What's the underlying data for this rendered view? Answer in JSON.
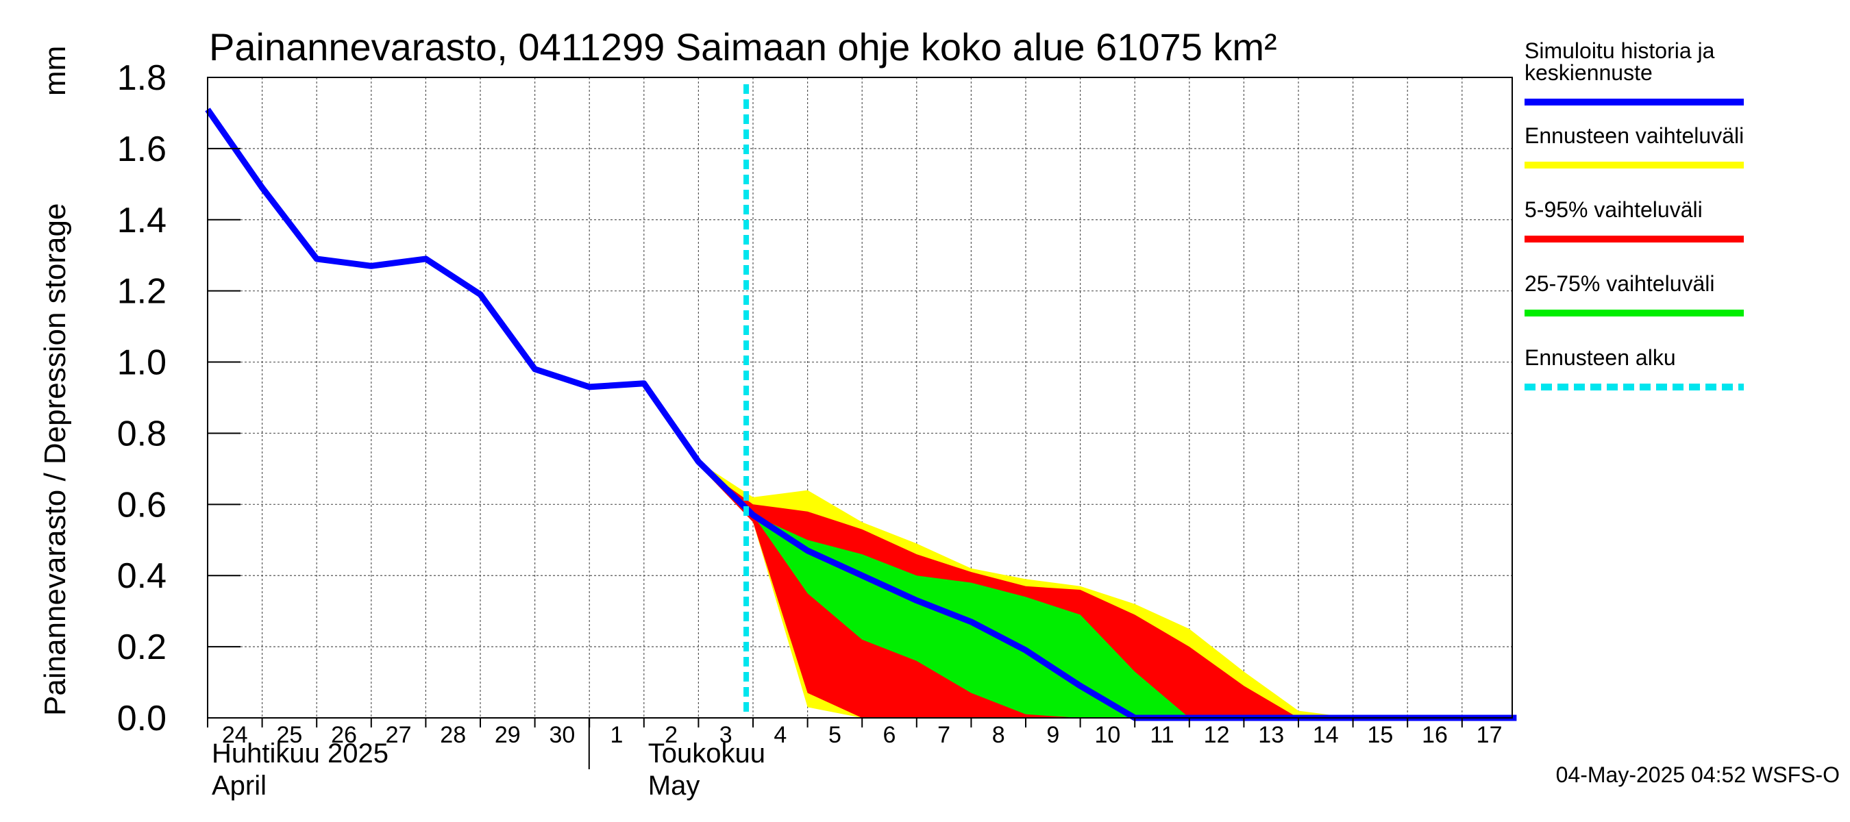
{
  "chart_data": {
    "type": "area",
    "title": "Painannevarasto, 0411299 Saimaan ohje koko alue 61075 km²",
    "ylabel": "Painannevarasto / Depression storage",
    "yunit": "mm",
    "ylim": [
      0,
      1.8
    ],
    "yticks": [
      "0.0",
      "0.2",
      "0.4",
      "0.6",
      "0.8",
      "1.0",
      "1.2",
      "1.4",
      "1.6",
      "1.8"
    ],
    "xticks": [
      "24",
      "25",
      "26",
      "27",
      "28",
      "29",
      "30",
      "1",
      "2",
      "3",
      "4",
      "5",
      "6",
      "7",
      "8",
      "9",
      "10",
      "11",
      "12",
      "13",
      "14",
      "15",
      "16",
      "17"
    ],
    "x_start": "2025-04-24",
    "month_labels": [
      {
        "line1": "Huhtikuu  2025",
        "line2": "April",
        "at": "2025-04-24"
      },
      {
        "line1": "Toukokuu",
        "line2": "May",
        "at": "2025-05-02"
      }
    ],
    "forecast_start": "2025-05-03T21:00",
    "grid": true,
    "series": [
      {
        "name": "Simuloitu historia ja keskiennuste",
        "color": "#0000ff",
        "x": [
          "2025-04-24",
          "2025-04-25",
          "2025-04-26",
          "2025-04-27",
          "2025-04-28",
          "2025-04-29",
          "2025-04-30",
          "2025-05-01",
          "2025-05-02",
          "2025-05-03",
          "2025-05-04",
          "2025-05-05",
          "2025-05-06",
          "2025-05-07",
          "2025-05-08",
          "2025-05-09",
          "2025-05-10",
          "2025-05-11",
          "2025-05-12",
          "2025-05-13",
          "2025-05-14",
          "2025-05-15",
          "2025-05-16",
          "2025-05-17",
          "2025-05-18"
        ],
        "values": [
          1.71,
          1.49,
          1.29,
          1.27,
          1.29,
          1.19,
          0.98,
          0.93,
          0.94,
          0.72,
          0.57,
          0.47,
          0.4,
          0.33,
          0.27,
          0.19,
          0.09,
          0.0,
          0.0,
          0.0,
          0.0,
          0.0,
          0.0,
          0.0,
          0.0
        ]
      }
    ],
    "bands": [
      {
        "name": "Ennusteen vaihteluväli",
        "color": "#ffff00",
        "x": [
          "2025-05-03",
          "2025-05-04",
          "2025-05-05",
          "2025-05-06",
          "2025-05-07",
          "2025-05-08",
          "2025-05-09",
          "2025-05-10",
          "2025-05-11",
          "2025-05-12",
          "2025-05-13",
          "2025-05-14",
          "2025-05-15",
          "2025-05-16",
          "2025-05-17",
          "2025-05-18"
        ],
        "upper": [
          0.72,
          0.62,
          0.64,
          0.55,
          0.49,
          0.42,
          0.39,
          0.37,
          0.32,
          0.25,
          0.13,
          0.02,
          0.0,
          0.0,
          0.0,
          0.0
        ],
        "lower": [
          0.72,
          0.55,
          0.03,
          0.0,
          0.0,
          0.0,
          0.0,
          0.0,
          0.0,
          0.0,
          0.0,
          0.0,
          0.0,
          0.0,
          0.0,
          0.0
        ]
      },
      {
        "name": "5-95% vaihteluväli",
        "color": "#ff0000",
        "x": [
          "2025-05-03",
          "2025-05-04",
          "2025-05-05",
          "2025-05-06",
          "2025-05-07",
          "2025-05-08",
          "2025-05-09",
          "2025-05-10",
          "2025-05-11",
          "2025-05-12",
          "2025-05-13",
          "2025-05-14",
          "2025-05-15",
          "2025-05-16",
          "2025-05-17",
          "2025-05-18"
        ],
        "upper": [
          0.71,
          0.6,
          0.58,
          0.53,
          0.46,
          0.41,
          0.37,
          0.36,
          0.29,
          0.2,
          0.09,
          0.0,
          0.0,
          0.0,
          0.0,
          0.0
        ],
        "lower": [
          0.71,
          0.55,
          0.07,
          0.0,
          0.0,
          0.0,
          0.0,
          0.0,
          0.0,
          0.0,
          0.0,
          0.0,
          0.0,
          0.0,
          0.0,
          0.0
        ]
      },
      {
        "name": "25-75% vaihteluväli",
        "color": "#00ee00",
        "x": [
          "2025-05-04",
          "2025-05-05",
          "2025-05-06",
          "2025-05-07",
          "2025-05-08",
          "2025-05-09",
          "2025-05-10",
          "2025-05-11",
          "2025-05-12",
          "2025-05-13",
          "2025-05-14",
          "2025-05-15",
          "2025-05-16",
          "2025-05-17",
          "2025-05-18"
        ],
        "upper": [
          0.57,
          0.5,
          0.46,
          0.4,
          0.38,
          0.34,
          0.29,
          0.13,
          0.0,
          0.0,
          0.0,
          0.0,
          0.0,
          0.0,
          0.0
        ],
        "lower": [
          0.57,
          0.35,
          0.22,
          0.16,
          0.07,
          0.01,
          0.0,
          0.0,
          0.0,
          0.0,
          0.0,
          0.0,
          0.0,
          0.0,
          0.0
        ]
      }
    ],
    "legend": {
      "placement": "right",
      "entries": [
        {
          "label_lines": [
            "Simuloitu historia ja",
            "keskiennuste"
          ],
          "color": "#0000ff",
          "style": "solid"
        },
        {
          "label_lines": [
            "Ennusteen vaihteluväli"
          ],
          "color": "#ffff00",
          "style": "solid"
        },
        {
          "label_lines": [
            "5-95% vaihteluväli"
          ],
          "color": "#ff0000",
          "style": "solid"
        },
        {
          "label_lines": [
            "25-75% vaihteluväli"
          ],
          "color": "#00ee00",
          "style": "solid"
        },
        {
          "label_lines": [
            "Ennusteen alku"
          ],
          "color": "#00e5ee",
          "style": "dashed"
        }
      ]
    },
    "footer": "04-May-2025 04:52 WSFS-O"
  }
}
